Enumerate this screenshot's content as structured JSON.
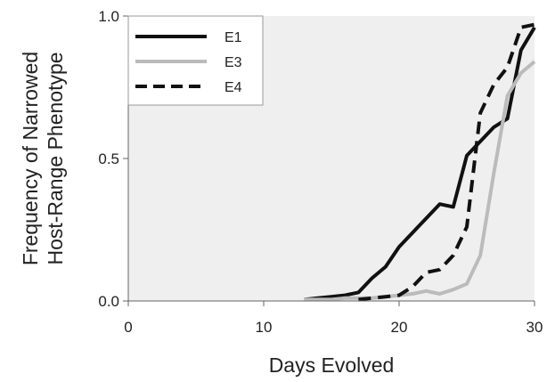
{
  "chart_data": {
    "type": "line",
    "title": "",
    "xlabel": "Days Evolved",
    "ylabel_lines": [
      "Frequency of Narrowed",
      "Host-Range Phenotype"
    ],
    "xlim": [
      0,
      30
    ],
    "ylim": [
      0,
      1
    ],
    "x_ticks": [
      0,
      10,
      20,
      30
    ],
    "x_tick_labels": [
      "0",
      "10",
      "20",
      "30"
    ],
    "y_ticks": [
      0,
      0.5,
      1
    ],
    "y_tick_labels": [
      "0.0",
      "0.5",
      "1.0"
    ],
    "grid": false,
    "plot_background": "#efefef",
    "legend_position": "top-left",
    "series": [
      {
        "name": "E1",
        "color": "#111111",
        "dash": "solid",
        "x": [
          13,
          14,
          15,
          16,
          17,
          18,
          19,
          20,
          21,
          22,
          23,
          24,
          25,
          26,
          27,
          28,
          29,
          30
        ],
        "y": [
          0.005,
          0.01,
          0.015,
          0.02,
          0.03,
          0.08,
          0.12,
          0.19,
          0.24,
          0.29,
          0.34,
          0.33,
          0.51,
          0.56,
          0.61,
          0.64,
          0.88,
          0.96
        ]
      },
      {
        "name": "E3",
        "color": "#bbbbbb",
        "dash": "solid",
        "x": [
          13,
          14,
          15,
          16,
          17,
          18,
          19,
          20,
          21,
          22,
          23,
          24,
          25,
          26,
          27,
          28,
          29,
          30
        ],
        "y": [
          0.005,
          0.005,
          0.005,
          0.01,
          0.01,
          0.01,
          0.015,
          0.02,
          0.025,
          0.035,
          0.025,
          0.04,
          0.06,
          0.16,
          0.45,
          0.72,
          0.8,
          0.84
        ]
      },
      {
        "name": "E4",
        "color": "#111111",
        "dash": "dashed",
        "x": [
          17,
          18,
          19,
          20,
          21,
          22,
          23,
          24,
          25,
          26,
          27,
          28,
          29,
          30
        ],
        "y": [
          0.005,
          0.01,
          0.015,
          0.02,
          0.05,
          0.1,
          0.11,
          0.16,
          0.26,
          0.66,
          0.76,
          0.82,
          0.96,
          0.97
        ]
      }
    ]
  }
}
